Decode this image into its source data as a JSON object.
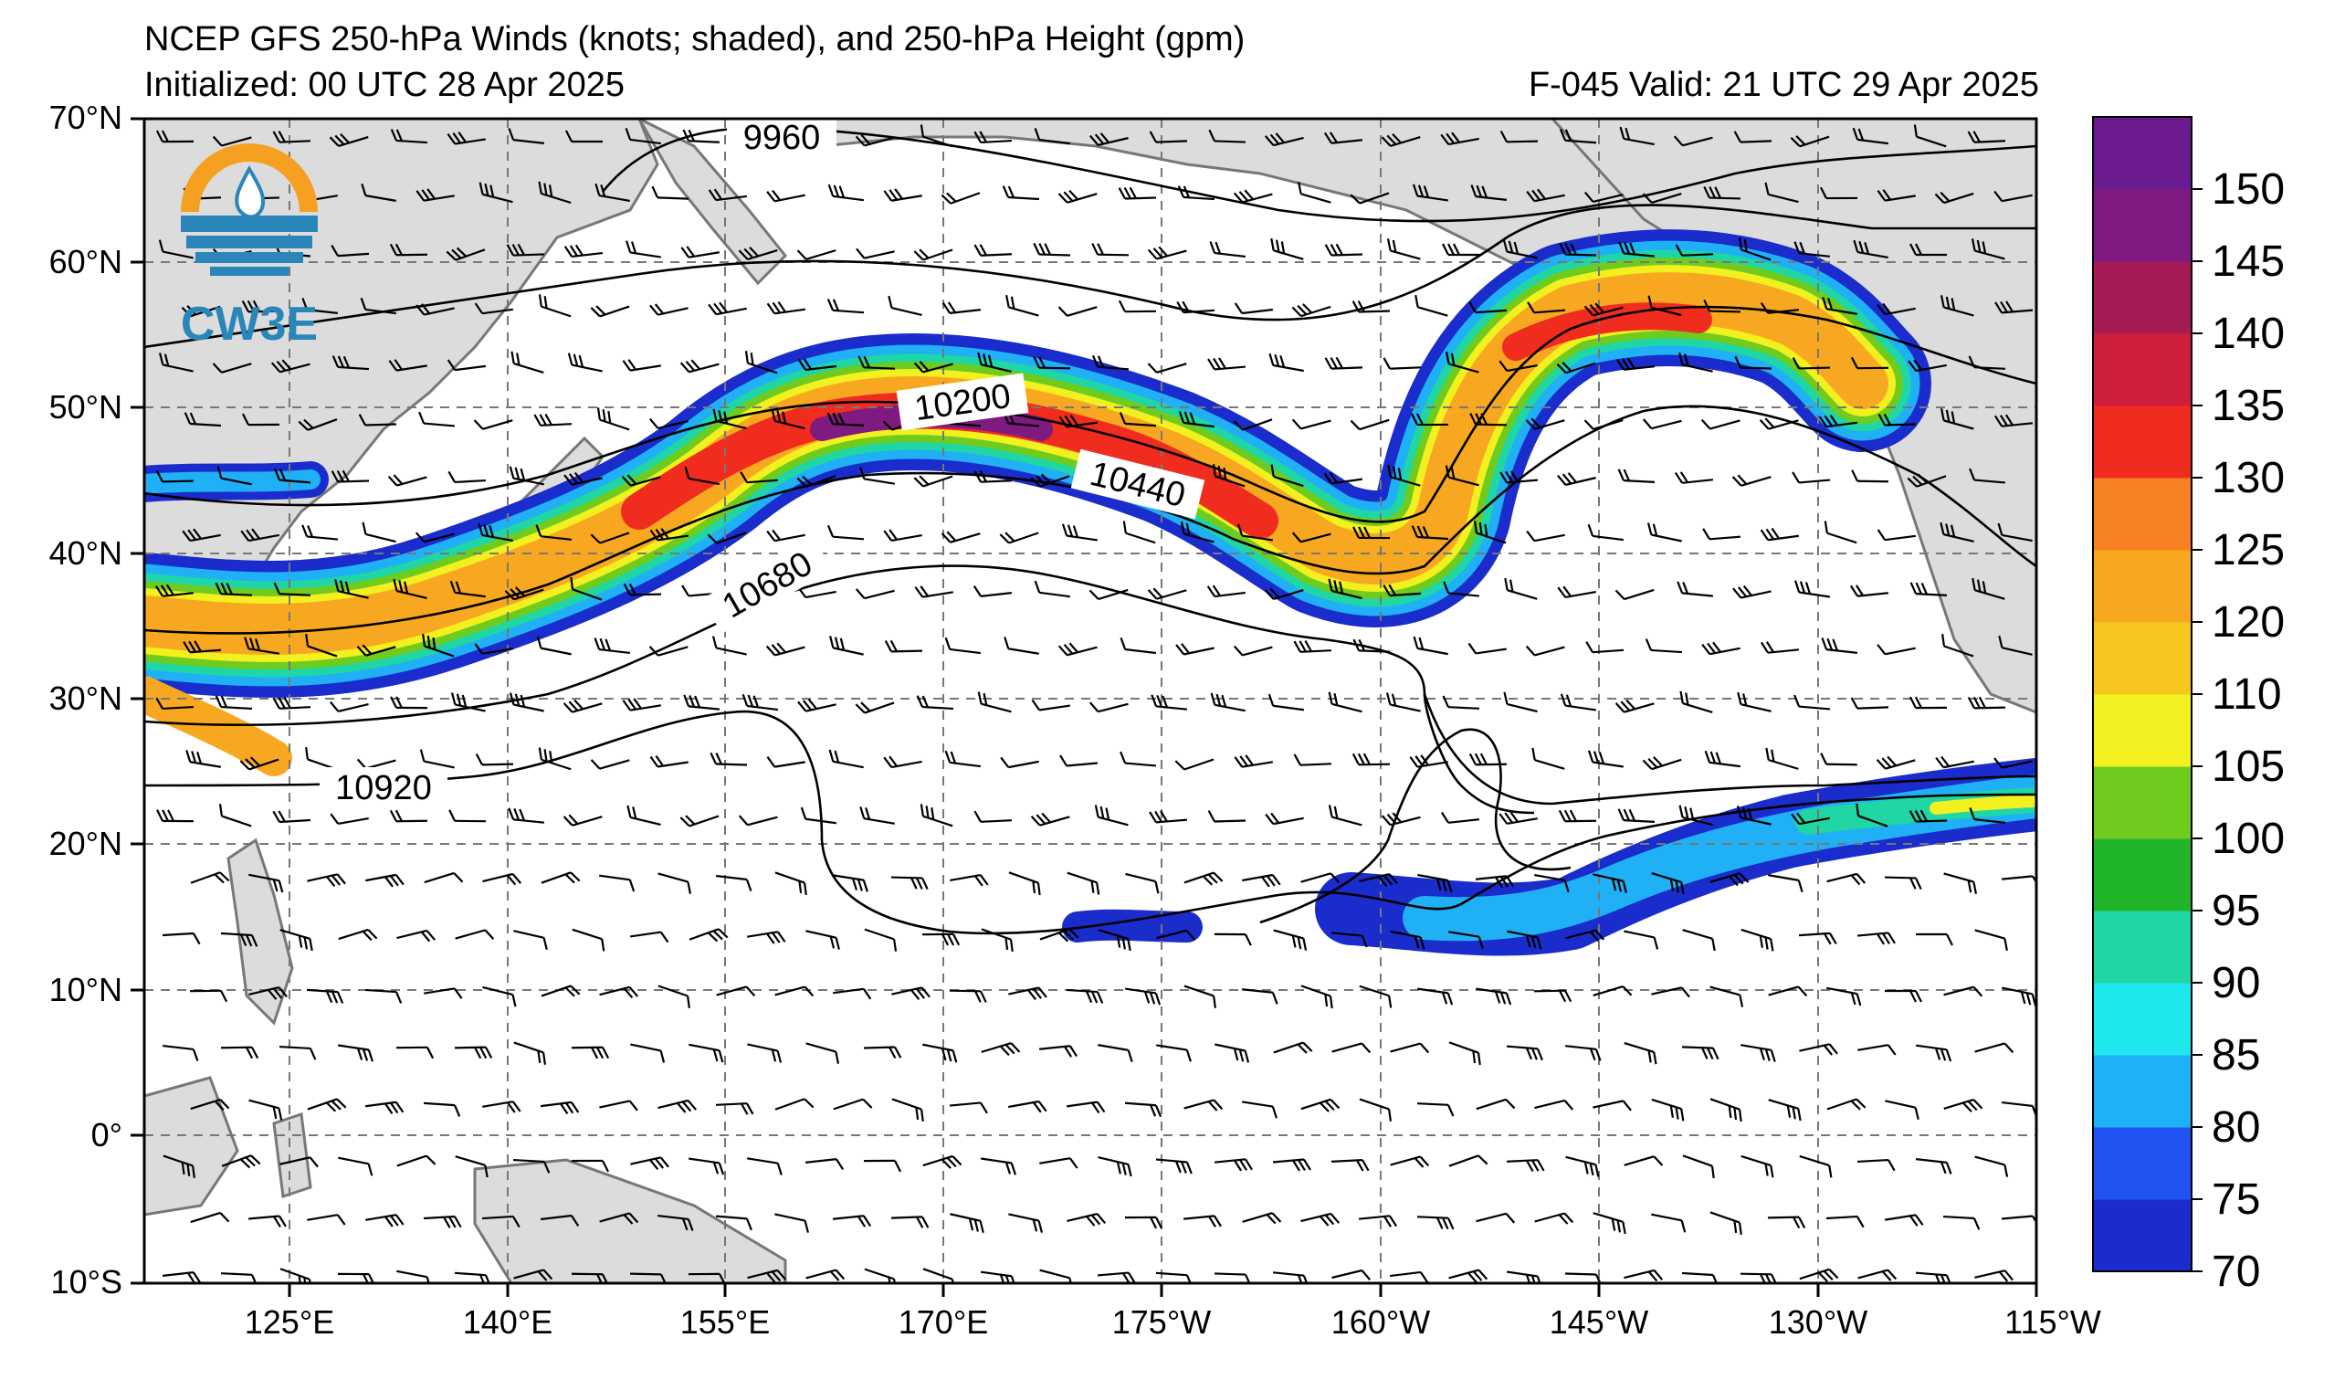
{
  "header": {
    "title": "NCEP GFS 250-hPa Winds (knots; shaded), and 250-hPa Height (gpm)",
    "initialized": "Initialized: 00 UTC 28 Apr 2025",
    "valid": "F-045  Valid: 21 UTC 29 Apr 2025"
  },
  "logo": {
    "text": "CW3E",
    "colors": {
      "orange": "#f5a020",
      "blue": "#2a86b8"
    }
  },
  "map": {
    "lat_labels": [
      "70°N",
      "60°N",
      "50°N",
      "40°N",
      "30°N",
      "20°N",
      "10°N",
      "0°",
      "10°S"
    ],
    "lon_labels": [
      "125°E",
      "140°E",
      "155°E",
      "170°E",
      "175°W",
      "160°W",
      "145°W",
      "130°W",
      "115°W"
    ],
    "contour_labels": [
      "9960",
      "10200",
      "10440",
      "10680",
      "10920"
    ],
    "land_color": "#dcdcdc",
    "coast_color": "#777777"
  },
  "colorbar": {
    "levels": [
      "70",
      "75",
      "80",
      "85",
      "90",
      "95",
      "100",
      "105",
      "110",
      "120",
      "125",
      "130",
      "135",
      "140",
      "145",
      "150"
    ],
    "colors": [
      "#1b2ccc",
      "#2153f0",
      "#1fb0f5",
      "#1ee8ee",
      "#1fd6a4",
      "#21b52a",
      "#6fcc1f",
      "#f3f01f",
      "#f7c71f",
      "#f8a820",
      "#f68122",
      "#f02c1f",
      "#cf1f3c",
      "#a51b56",
      "#7f1a80",
      "#6c1a8f"
    ]
  }
}
